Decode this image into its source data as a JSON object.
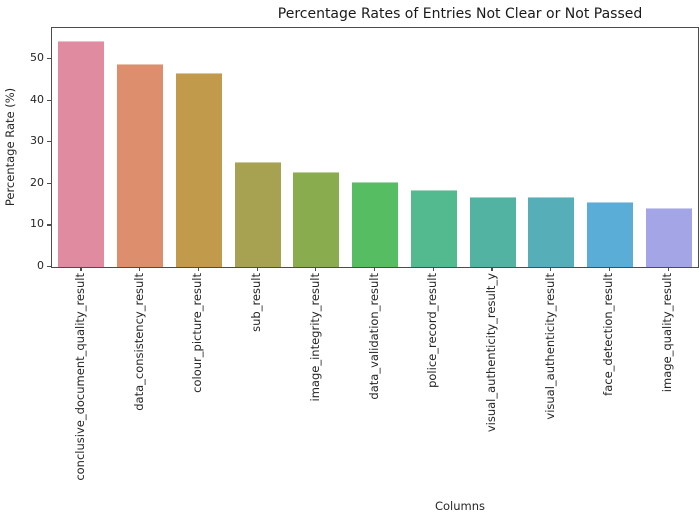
{
  "chart_data": {
    "type": "bar",
    "title": "Percentage Rates of Entries Not Clear or Not Passed",
    "xlabel": "Columns",
    "ylabel": "Percentage Rate (%)",
    "categories": [
      "conclusive_document_quality_result",
      "data_consistency_result",
      "colour_picture_result",
      "sub_result",
      "image_integrity_result",
      "data_validation_result",
      "police_record_result",
      "visual_authenticity_result_y",
      "visual_authenticity_result",
      "face_detection_result",
      "image_quality_result"
    ],
    "values": [
      54.4,
      48.8,
      46.7,
      25.3,
      22.8,
      20.4,
      18.6,
      16.9,
      16.9,
      15.6,
      14.2
    ],
    "bar_colors": [
      "#e08b9f",
      "#dd8e6c",
      "#c19b4b",
      "#a7a251",
      "#89ad4e",
      "#56bd63",
      "#53b98e",
      "#52b3a3",
      "#56aeb8",
      "#5aadd6",
      "#a4a5e7"
    ],
    "yticks": [
      0,
      10,
      20,
      30,
      40,
      50
    ],
    "ylim": [
      0,
      57.5
    ],
    "grid": false,
    "legend": null,
    "spine_color": "#4d4d4d",
    "text_color": "#262626"
  }
}
